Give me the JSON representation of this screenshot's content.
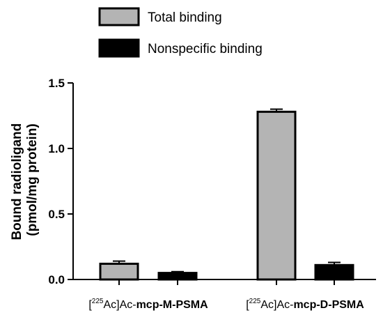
{
  "chart_data": {
    "type": "bar",
    "title": "",
    "xlabel": "",
    "ylabel": "Bound radioligand",
    "ylabel_unit": "(pmol/mg protein)",
    "ylim": [
      0,
      1.5
    ],
    "yticks": [
      0,
      0.5,
      1.0,
      1.5
    ],
    "ytick_labels": [
      "0.0",
      "0.5",
      "1.0",
      "1.5"
    ],
    "categories": [
      {
        "prefix": "[",
        "sup": "225",
        "mid": "Ac]Ac-",
        "bold": "mcp-M-PSMA"
      },
      {
        "prefix": "[",
        "sup": "225",
        "mid": "Ac]Ac-",
        "bold": "mcp-D-PSMA"
      }
    ],
    "series": [
      {
        "name": "Total binding",
        "color": "#b4b4b4",
        "values": [
          0.12,
          1.28
        ],
        "errors": [
          0.02,
          0.02
        ]
      },
      {
        "name": "Nonspecific binding",
        "color": "#000000",
        "values": [
          0.05,
          0.11
        ],
        "errors": [
          0.01,
          0.02
        ]
      }
    ],
    "legend_position": "top-center",
    "grid": false
  }
}
